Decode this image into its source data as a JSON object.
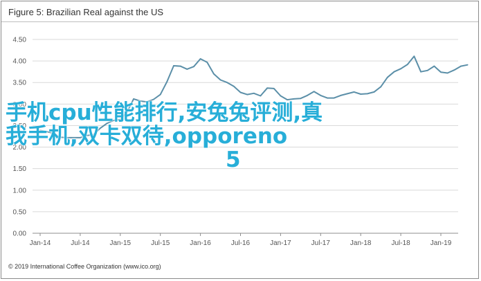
{
  "figure_title": "Figure 5: Brazilian Real against the US",
  "credit": "© 2019 International Coffee Organization (www.ico.org)",
  "overlay_text": {
    "line1": "手机cpu性能排行,安兔兔评测,真",
    "line2": "我手机,双卡双待,opporeno",
    "line3": "5"
  },
  "colors": {
    "line": "#5b8fa8",
    "overlay": "#27aed8",
    "grid": "#d9d9d9",
    "axis": "#8c8c8c",
    "tick_label": "#555555"
  },
  "chart_data": {
    "type": "line",
    "title": "Figure 5: Brazilian Real against the US",
    "xlabel": "",
    "ylabel": "",
    "ylim": [
      0,
      4.5
    ],
    "grid": true,
    "y_ticks": [
      "0.00",
      "0.50",
      "1.00",
      "1.50",
      "2.00",
      "2.50",
      "3.00",
      "3.50",
      "4.00",
      "4.50"
    ],
    "x_ticks": [
      "Jan-14",
      "Jul-14",
      "Jan-15",
      "Jul-15",
      "Jan-16",
      "Jul-16",
      "Jan-17",
      "Jul-17",
      "Jan-18",
      "Jul-18",
      "Jan-19"
    ],
    "series": [
      {
        "x": [
          "Jan-14",
          "Feb-14",
          "Mar-14",
          "Apr-14",
          "May-14",
          "Jun-14",
          "Jul-14",
          "Aug-14",
          "Sep-14",
          "Oct-14",
          "Nov-14",
          "Dec-14",
          "Jan-15",
          "Feb-15",
          "Mar-15",
          "Apr-15",
          "May-15",
          "Jun-15",
          "Jul-15",
          "Aug-15",
          "Sep-15",
          "Oct-15",
          "Nov-15",
          "Dec-15",
          "Jan-16",
          "Feb-16",
          "Mar-16",
          "Apr-16",
          "May-16",
          "Jun-16",
          "Jul-16",
          "Aug-16",
          "Sep-16",
          "Oct-16",
          "Nov-16",
          "Dec-16",
          "Jan-17",
          "Feb-17",
          "Mar-17",
          "Apr-17",
          "May-17",
          "Jun-17",
          "Jul-17",
          "Aug-17",
          "Sep-17",
          "Oct-17",
          "Nov-17",
          "Dec-17",
          "Jan-18",
          "Feb-18",
          "Mar-18",
          "Apr-18",
          "May-18",
          "Jun-18",
          "Jul-18",
          "Aug-18",
          "Sep-18",
          "Oct-18",
          "Nov-18",
          "Dec-18",
          "Jan-19",
          "Feb-19",
          "Mar-19",
          "Apr-19",
          "May-19"
        ],
        "values": [
          2.39,
          2.36,
          2.32,
          2.23,
          2.22,
          2.22,
          2.22,
          2.27,
          2.29,
          2.44,
          2.55,
          2.62,
          2.64,
          2.81,
          3.12,
          3.07,
          3.05,
          3.11,
          3.22,
          3.52,
          3.89,
          3.88,
          3.81,
          3.87,
          4.05,
          3.97,
          3.7,
          3.56,
          3.5,
          3.41,
          3.27,
          3.22,
          3.25,
          3.19,
          3.37,
          3.36,
          3.19,
          3.1,
          3.12,
          3.13,
          3.2,
          3.29,
          3.2,
          3.14,
          3.14,
          3.2,
          3.24,
          3.28,
          3.23,
          3.24,
          3.28,
          3.4,
          3.62,
          3.75,
          3.82,
          3.92,
          4.11,
          3.75,
          3.78,
          3.88,
          3.74,
          3.72,
          3.79,
          3.88,
          3.91
        ]
      }
    ]
  }
}
